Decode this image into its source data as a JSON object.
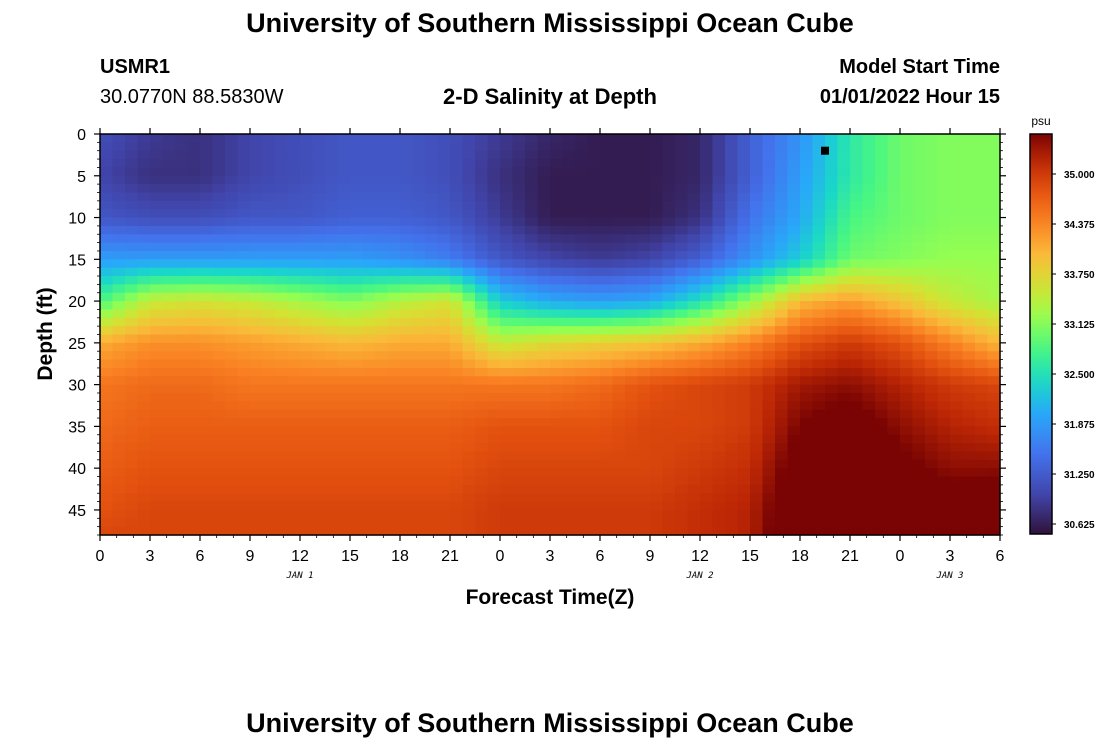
{
  "header": {
    "title": "University of Southern Mississippi Ocean Cube",
    "station_id": "USMR1",
    "coordinates": "30.0770N  88.5830W",
    "subtitle": "2-D Salinity at Depth",
    "model_start_label": "Model Start Time",
    "model_start_value": "01/01/2022 Hour 15"
  },
  "footer": {
    "title": "University of Southern Mississippi Ocean Cube"
  },
  "chart_data": {
    "type": "heatmap",
    "title": "2-D Salinity at Depth",
    "xlabel": "Forecast Time(Z)",
    "ylabel": "Depth (ft)",
    "x_ticks": [
      "0",
      "3",
      "6",
      "9",
      "12",
      "15",
      "18",
      "21",
      "0",
      "3",
      "6",
      "9",
      "12",
      "15",
      "18",
      "21",
      "0",
      "3",
      "6"
    ],
    "x_range_hours": [
      0,
      54
    ],
    "y_ticks": [
      "0",
      "5",
      "10",
      "15",
      "20",
      "25",
      "30",
      "35",
      "40",
      "45"
    ],
    "ylim": [
      0,
      48
    ],
    "y_inverted": true,
    "date_labels": [
      {
        "label": "JAN 1",
        "hour": 12
      },
      {
        "label": "JAN 2",
        "hour": 36
      },
      {
        "label": "JAN 3",
        "hour": 51
      }
    ],
    "colorbar": {
      "unit": "psu",
      "ticks": [
        "35.000",
        "34.375",
        "33.750",
        "33.125",
        "32.500",
        "31.875",
        "31.250",
        "30.625"
      ],
      "range": [
        30.5,
        35.5
      ]
    },
    "grid_columns": [
      "0",
      "3",
      "6",
      "9",
      "12",
      "15",
      "18",
      "21",
      "24",
      "27",
      "30",
      "33",
      "36",
      "39",
      "42",
      "45",
      "48",
      "51",
      "54"
    ],
    "grid_depths": [
      0,
      5,
      10,
      15,
      20,
      25,
      30,
      35,
      40,
      45,
      48
    ],
    "salinity": [
      [
        31.1,
        30.9,
        30.8,
        31.0,
        31.1,
        31.2,
        31.2,
        31.1,
        30.9,
        30.7,
        30.6,
        30.6,
        30.7,
        31.3,
        31.8,
        32.6,
        33.0,
        33.1,
        33.1
      ],
      [
        31.0,
        30.8,
        30.8,
        31.0,
        31.1,
        31.2,
        31.2,
        31.1,
        30.8,
        30.6,
        30.6,
        30.6,
        30.7,
        31.3,
        31.9,
        32.6,
        33.0,
        33.1,
        33.1
      ],
      [
        31.2,
        31.1,
        31.1,
        31.2,
        31.2,
        31.3,
        31.3,
        31.2,
        30.9,
        30.6,
        30.6,
        30.6,
        30.8,
        31.5,
        32.0,
        32.8,
        33.0,
        33.1,
        33.1
      ],
      [
        31.9,
        31.9,
        31.9,
        31.9,
        31.9,
        31.9,
        31.8,
        31.6,
        31.2,
        31.0,
        30.9,
        31.0,
        31.3,
        31.8,
        32.3,
        33.0,
        33.1,
        33.2,
        33.2
      ],
      [
        32.8,
        33.5,
        33.6,
        33.5,
        33.3,
        33.1,
        33.4,
        33.6,
        32.3,
        32.0,
        31.9,
        32.0,
        32.5,
        33.2,
        34.0,
        34.2,
        33.9,
        33.5,
        33.3
      ],
      [
        34.1,
        34.3,
        34.3,
        34.2,
        34.1,
        34.0,
        34.1,
        34.1,
        33.5,
        33.7,
        33.8,
        33.9,
        34.1,
        34.4,
        34.8,
        35.0,
        34.8,
        34.4,
        34.0
      ],
      [
        34.5,
        34.6,
        34.6,
        34.5,
        34.5,
        34.5,
        34.5,
        34.5,
        34.5,
        34.5,
        34.6,
        34.8,
        34.9,
        35.0,
        35.3,
        35.4,
        35.2,
        35.0,
        34.9
      ],
      [
        34.6,
        34.7,
        34.7,
        34.7,
        34.7,
        34.7,
        34.7,
        34.7,
        34.8,
        34.8,
        34.8,
        34.9,
        34.9,
        35.0,
        35.5,
        35.7,
        35.4,
        35.2,
        35.1
      ],
      [
        34.7,
        34.8,
        34.8,
        34.8,
        34.8,
        34.8,
        34.8,
        34.8,
        34.9,
        34.9,
        34.9,
        34.9,
        35.0,
        35.1,
        35.7,
        35.9,
        35.6,
        35.4,
        35.4
      ],
      [
        34.8,
        34.9,
        34.9,
        34.9,
        34.9,
        34.9,
        34.9,
        34.9,
        35.0,
        35.0,
        35.0,
        35.0,
        35.1,
        35.2,
        35.9,
        36.0,
        35.8,
        35.7,
        35.8
      ],
      [
        34.9,
        34.9,
        34.9,
        34.9,
        34.9,
        34.9,
        34.9,
        34.9,
        35.0,
        35.0,
        35.0,
        35.0,
        35.1,
        35.2,
        36.0,
        36.1,
        35.9,
        35.9,
        36.0
      ]
    ],
    "marker": {
      "hour": 43.5,
      "depth": 2
    }
  }
}
